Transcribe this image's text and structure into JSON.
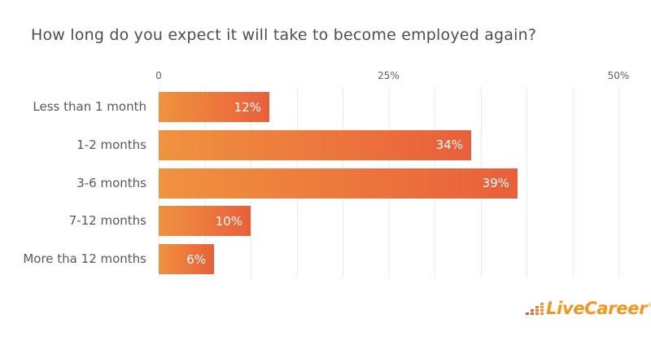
{
  "chart_data": {
    "type": "bar",
    "orientation": "horizontal",
    "title": "How long do you expect it will take to become employed again?",
    "categories": [
      "Less than 1 month",
      "1-2 months",
      "3-6 months",
      "7-12 months",
      "More tha 12 months"
    ],
    "values": [
      12,
      34,
      39,
      10,
      6
    ],
    "value_labels": [
      "12%",
      "34%",
      "39%",
      "10%",
      "6%"
    ],
    "xlabel": "",
    "ylabel": "",
    "xlim": [
      0,
      50
    ],
    "x_ticks": [
      {
        "value": 0,
        "label": "0"
      },
      {
        "value": 25,
        "label": "25%"
      },
      {
        "value": 50,
        "label": "50%"
      }
    ],
    "gridline_step": 5,
    "grid": true,
    "legend": "none",
    "bar_gradient": [
      "#F0923F",
      "#E95F3B"
    ],
    "value_label_color": "#FFFFFF"
  },
  "branding": {
    "logo_text": "LiveCareer",
    "registered_mark": "®",
    "logo_color": "#F7941E",
    "icon_name": "bar-chart-dots-icon",
    "icon_columns": [
      1,
      2,
      3,
      4
    ],
    "icon_colors": [
      "#E04E3B",
      "#E8603A",
      "#F07A36",
      "#F89430"
    ]
  }
}
